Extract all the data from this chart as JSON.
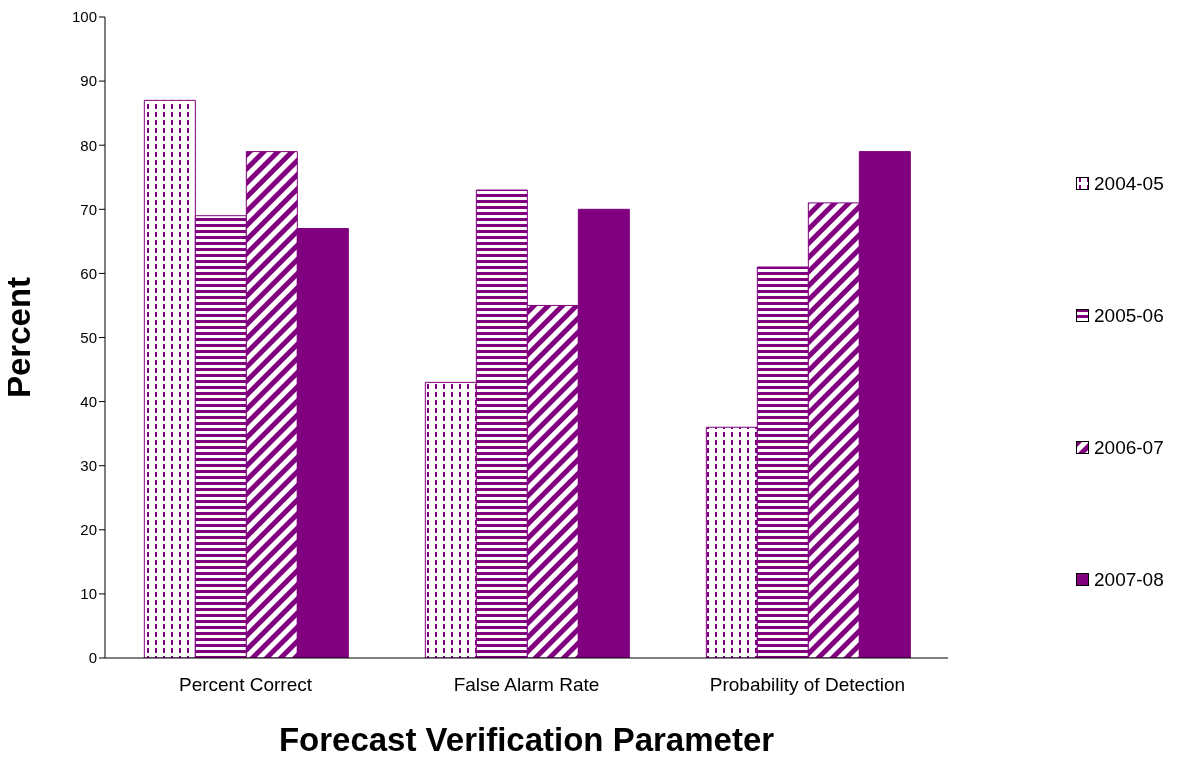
{
  "chart_data": {
    "type": "bar",
    "xlabel": "Forecast Verification Parameter",
    "ylabel": "Percent",
    "categories": [
      "Percent Correct",
      "False Alarm Rate",
      "Probability of Detection"
    ],
    "series": [
      {
        "name": "2004-05",
        "color": "#800080",
        "values": [
          87,
          43,
          36
        ]
      },
      {
        "name": "2005-06",
        "color": "#800080",
        "values": [
          69,
          73,
          61
        ]
      },
      {
        "name": "2006-07",
        "color": "#800080",
        "values": [
          79,
          55,
          71
        ]
      },
      {
        "name": "2007-08",
        "color": "#800080",
        "values": [
          67,
          70,
          79
        ]
      }
    ],
    "ylim": [
      0,
      100
    ],
    "yticks": [
      0,
      10,
      20,
      30,
      40,
      50,
      60,
      70,
      80,
      90,
      100
    ],
    "grid": false,
    "legend": "right"
  }
}
